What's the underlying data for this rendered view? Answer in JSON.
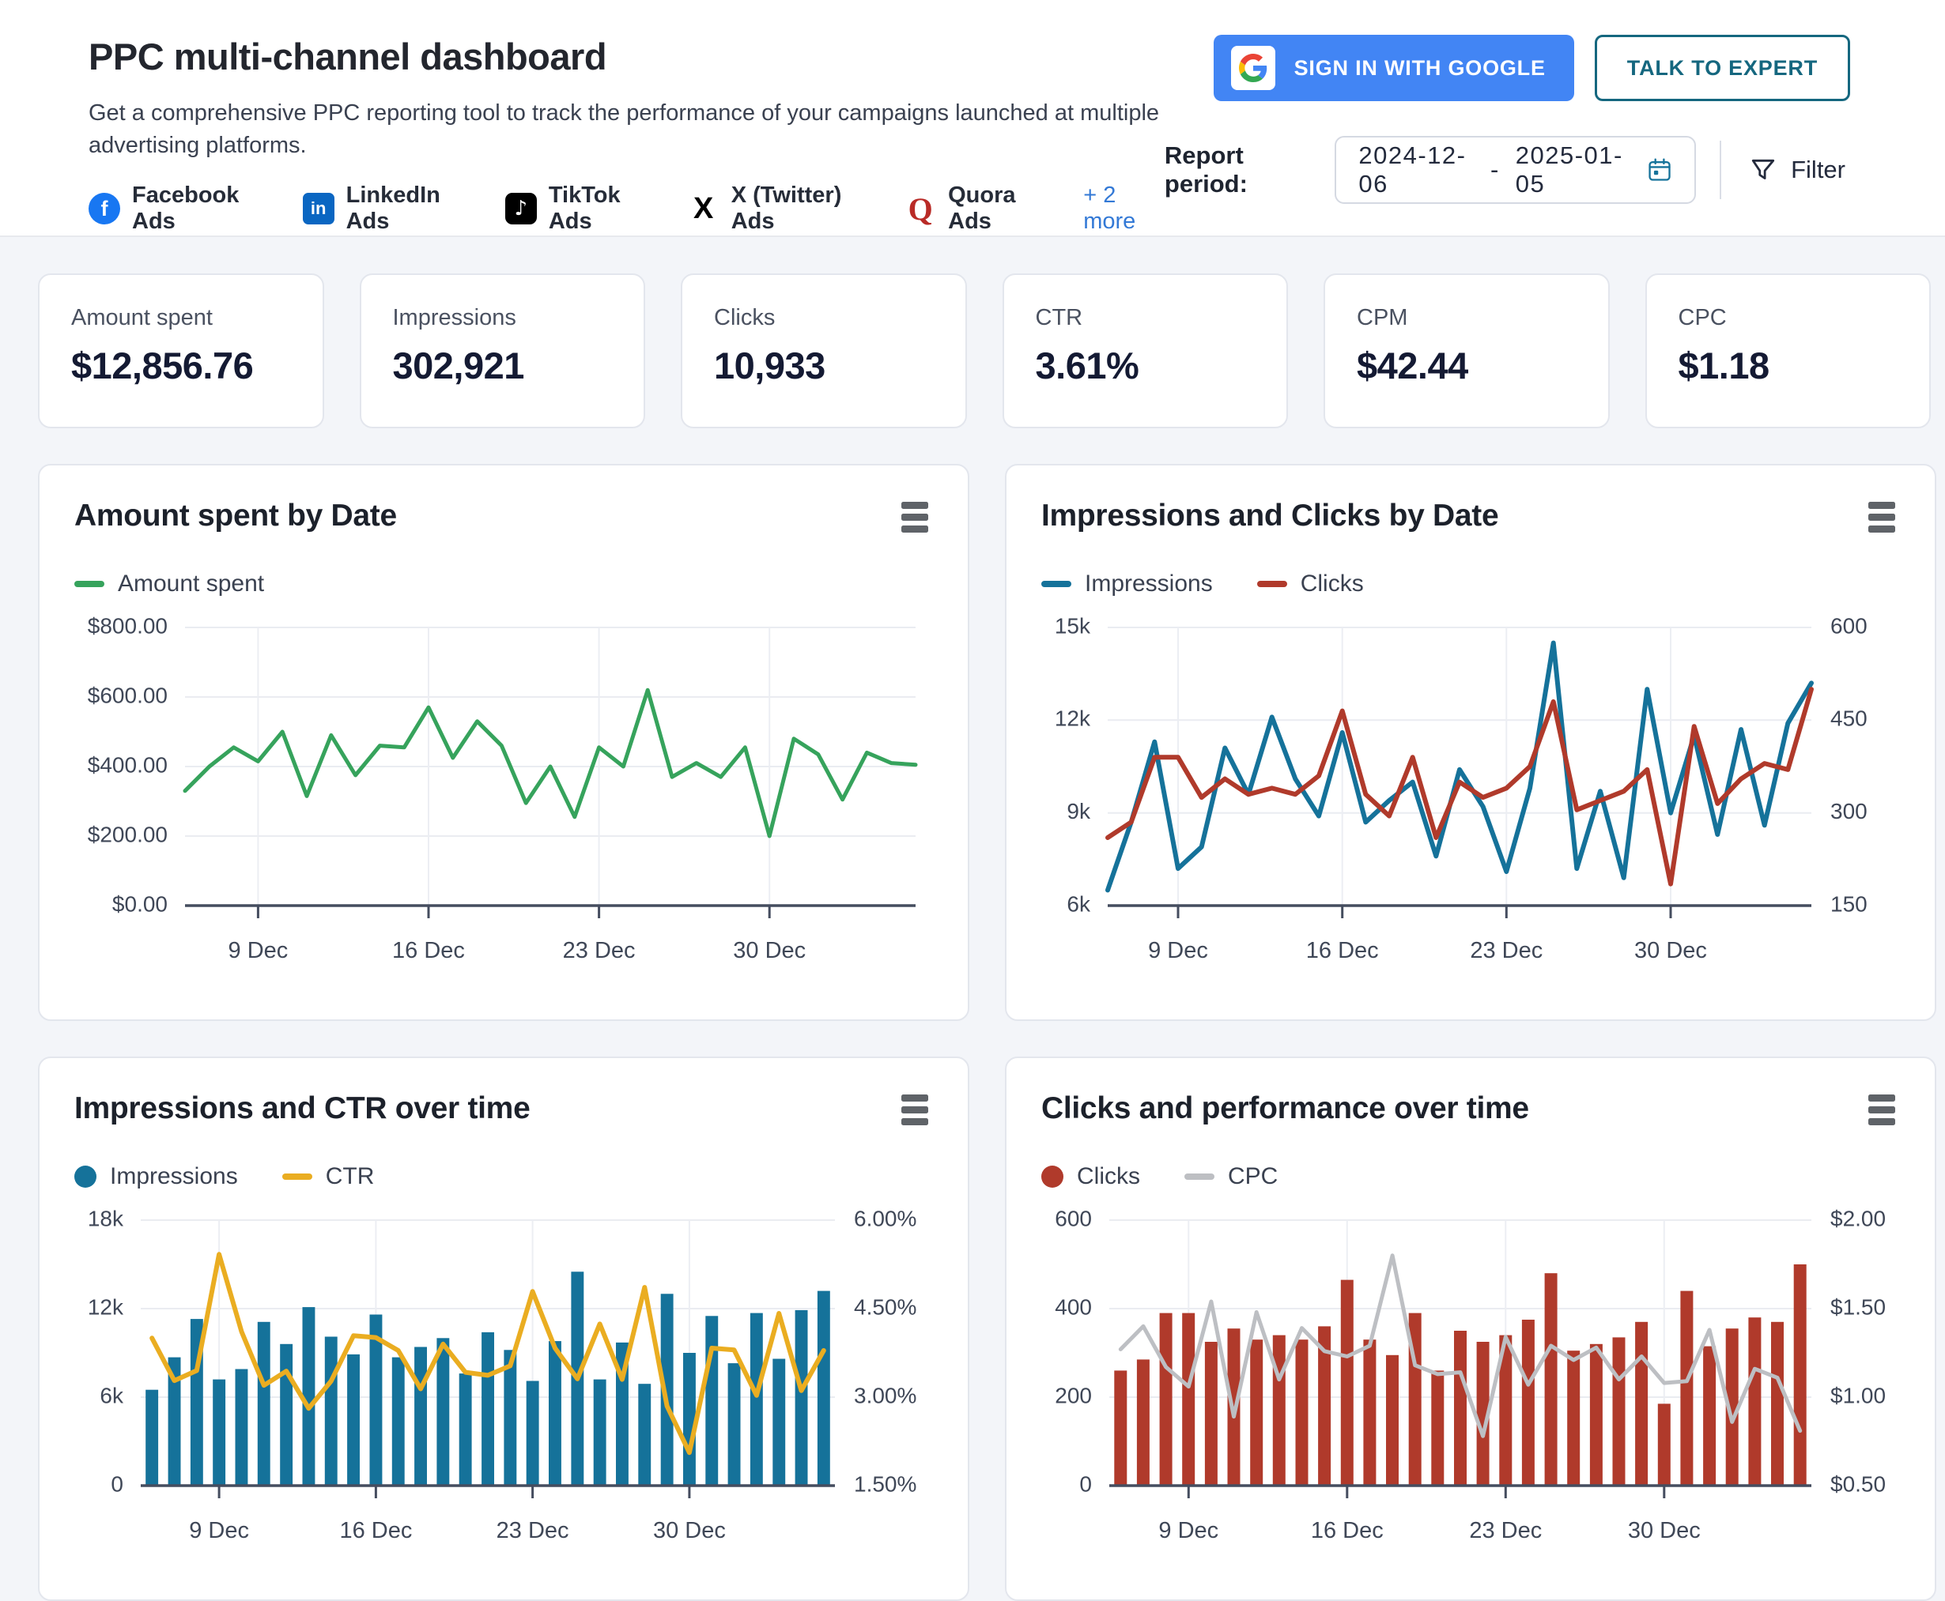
{
  "header": {
    "title": "PPC multi-channel dashboard",
    "subtitle": "Get a comprehensive PPC reporting tool to track the performance of your campaigns launched at multiple advertising platforms.",
    "platforms": [
      {
        "name": "Facebook Ads",
        "icon": "facebook-icon"
      },
      {
        "name": "LinkedIn Ads",
        "icon": "linkedin-icon"
      },
      {
        "name": "TikTok Ads",
        "icon": "tiktok-icon"
      },
      {
        "name": "X (Twitter) Ads",
        "icon": "x-twitter-icon"
      },
      {
        "name": "Quora Ads",
        "icon": "quora-icon"
      }
    ],
    "more_link": "+ 2 more",
    "sign_in_button": "SIGN IN WITH GOOGLE",
    "talk_to_expert_button": "TALK TO EXPERT",
    "report_period_label": "Report period:",
    "report_period_start": "2024-12-06",
    "report_period_separator": "-",
    "report_period_end": "2025-01-05",
    "filter_label": "Filter"
  },
  "kpis": [
    {
      "label": "Amount spent",
      "value": "$12,856.76"
    },
    {
      "label": "Impressions",
      "value": "302,921"
    },
    {
      "label": "Clicks",
      "value": "10,933"
    },
    {
      "label": "CTR",
      "value": "3.61%"
    },
    {
      "label": "CPM",
      "value": "$42.44"
    },
    {
      "label": "CPC",
      "value": "$1.18"
    }
  ],
  "colors": {
    "green": "#36A35C",
    "blue": "#15729A",
    "red": "#B03A2B",
    "yellow": "#EAAD21",
    "gray_line": "#BDBFC3",
    "google_blue": "#4285F4",
    "teal": "#15677F",
    "link_blue": "#3379D6",
    "facebook": "#1877F2",
    "linkedin": "#0A66C2",
    "tiktok": "#000000",
    "quora": "#B92B27",
    "kpi_navy": "#141A33",
    "page_bg": "#F3F5F9"
  },
  "chart_data": [
    {
      "type": "line",
      "title": "Amount spent by Date",
      "x_dates": [
        "2024-12-06",
        "2024-12-07",
        "2024-12-08",
        "2024-12-09",
        "2024-12-10",
        "2024-12-11",
        "2024-12-12",
        "2024-12-13",
        "2024-12-14",
        "2024-12-15",
        "2024-12-16",
        "2024-12-17",
        "2024-12-18",
        "2024-12-19",
        "2024-12-20",
        "2024-12-21",
        "2024-12-22",
        "2024-12-23",
        "2024-12-24",
        "2024-12-25",
        "2024-12-26",
        "2024-12-27",
        "2024-12-28",
        "2024-12-29",
        "2024-12-30",
        "2024-12-31",
        "2025-01-01",
        "2025-01-02",
        "2025-01-03",
        "2025-01-04",
        "2025-01-05"
      ],
      "x_tick_labels": [
        "9 Dec",
        "16 Dec",
        "23 Dec",
        "30 Dec"
      ],
      "x_tick_indices": [
        3,
        10,
        17,
        24
      ],
      "left_axis": {
        "min": 0,
        "max": 800,
        "tick_labels": [
          "$0.00",
          "$200.00",
          "$400.00",
          "$600.00",
          "$800.00"
        ]
      },
      "series": [
        {
          "name": "Amount spent",
          "type": "line",
          "axis": "left",
          "color": "#36A35C",
          "values": [
            330,
            400,
            455,
            415,
            500,
            315,
            490,
            375,
            460,
            455,
            570,
            425,
            530,
            460,
            295,
            400,
            255,
            455,
            400,
            620,
            370,
            410,
            370,
            455,
            200,
            480,
            435,
            305,
            440,
            410,
            405
          ]
        }
      ],
      "legend": [
        {
          "label": "Amount spent",
          "swatch": "line",
          "color": "#36A35C"
        }
      ]
    },
    {
      "type": "line",
      "title": "Impressions and Clicks by Date",
      "x_dates": [
        "2024-12-06",
        "2024-12-07",
        "2024-12-08",
        "2024-12-09",
        "2024-12-10",
        "2024-12-11",
        "2024-12-12",
        "2024-12-13",
        "2024-12-14",
        "2024-12-15",
        "2024-12-16",
        "2024-12-17",
        "2024-12-18",
        "2024-12-19",
        "2024-12-20",
        "2024-12-21",
        "2024-12-22",
        "2024-12-23",
        "2024-12-24",
        "2024-12-25",
        "2024-12-26",
        "2024-12-27",
        "2024-12-28",
        "2024-12-29",
        "2024-12-30",
        "2024-12-31",
        "2025-01-01",
        "2025-01-02",
        "2025-01-03",
        "2025-01-04",
        "2025-01-05"
      ],
      "x_tick_labels": [
        "9 Dec",
        "16 Dec",
        "23 Dec",
        "30 Dec"
      ],
      "x_tick_indices": [
        3,
        10,
        17,
        24
      ],
      "left_axis": {
        "min": 6000,
        "max": 15000,
        "tick_labels": [
          "6k",
          "9k",
          "12k",
          "15k"
        ]
      },
      "right_axis": {
        "min": 150,
        "max": 600,
        "tick_labels": [
          "150",
          "300",
          "450",
          "600"
        ]
      },
      "series": [
        {
          "name": "Impressions",
          "type": "line",
          "axis": "left",
          "color": "#15729A",
          "values": [
            6500,
            8700,
            11300,
            7200,
            7900,
            11100,
            9600,
            12100,
            10100,
            8900,
            11600,
            8700,
            9400,
            10000,
            7600,
            10400,
            9200,
            7100,
            9800,
            14500,
            7200,
            9700,
            6900,
            13000,
            9000,
            11500,
            8300,
            11700,
            8600,
            11900,
            13200
          ]
        },
        {
          "name": "Clicks",
          "type": "line",
          "axis": "right",
          "color": "#B03A2B",
          "values": [
            260,
            285,
            390,
            390,
            325,
            355,
            330,
            340,
            330,
            360,
            465,
            330,
            295,
            390,
            260,
            350,
            325,
            340,
            375,
            480,
            305,
            320,
            335,
            370,
            185,
            440,
            315,
            355,
            380,
            370,
            500
          ]
        }
      ],
      "legend": [
        {
          "label": "Impressions",
          "swatch": "line",
          "color": "#15729A"
        },
        {
          "label": "Clicks",
          "swatch": "line",
          "color": "#B03A2B"
        }
      ]
    },
    {
      "type": "bar",
      "title": "Impressions and CTR over time",
      "x_dates": [
        "2024-12-06",
        "2024-12-07",
        "2024-12-08",
        "2024-12-09",
        "2024-12-10",
        "2024-12-11",
        "2024-12-12",
        "2024-12-13",
        "2024-12-14",
        "2024-12-15",
        "2024-12-16",
        "2024-12-17",
        "2024-12-18",
        "2024-12-19",
        "2024-12-20",
        "2024-12-21",
        "2024-12-22",
        "2024-12-23",
        "2024-12-24",
        "2024-12-25",
        "2024-12-26",
        "2024-12-27",
        "2024-12-28",
        "2024-12-29",
        "2024-12-30",
        "2024-12-31",
        "2025-01-01",
        "2025-01-02",
        "2025-01-03",
        "2025-01-04",
        "2025-01-05"
      ],
      "x_tick_labels": [
        "9 Dec",
        "16 Dec",
        "23 Dec",
        "30 Dec"
      ],
      "x_tick_indices": [
        3,
        10,
        17,
        24
      ],
      "left_axis": {
        "min": 0,
        "max": 18000,
        "tick_labels": [
          "0",
          "6k",
          "12k",
          "18k"
        ]
      },
      "right_axis": {
        "min": 1.5,
        "max": 6.0,
        "tick_labels": [
          "1.50%",
          "3.00%",
          "4.50%",
          "6.00%"
        ]
      },
      "series": [
        {
          "name": "Impressions",
          "type": "bar",
          "axis": "left",
          "color": "#15729A",
          "values": [
            6500,
            8700,
            11300,
            7200,
            7900,
            11100,
            9600,
            12100,
            10100,
            8900,
            11600,
            8700,
            9400,
            10000,
            7600,
            10400,
            9200,
            7100,
            9800,
            14500,
            7200,
            9700,
            6900,
            13000,
            9000,
            11500,
            8300,
            11700,
            8600,
            11900,
            13200
          ]
        },
        {
          "name": "CTR",
          "type": "line",
          "axis": "right",
          "color": "#EAAD21",
          "values": [
            4.0,
            3.28,
            3.45,
            5.42,
            4.11,
            3.2,
            3.44,
            2.81,
            3.27,
            4.04,
            4.01,
            3.79,
            3.14,
            3.9,
            3.42,
            3.37,
            3.53,
            4.79,
            3.83,
            3.31,
            4.24,
            3.3,
            4.86,
            2.85,
            2.06,
            3.83,
            3.8,
            3.03,
            4.42,
            3.11,
            3.79
          ]
        }
      ],
      "legend": [
        {
          "label": "Impressions",
          "swatch": "dot",
          "color": "#15729A"
        },
        {
          "label": "CTR",
          "swatch": "line",
          "color": "#EAAD21"
        }
      ]
    },
    {
      "type": "bar",
      "title": "Clicks and performance over time",
      "x_dates": [
        "2024-12-06",
        "2024-12-07",
        "2024-12-08",
        "2024-12-09",
        "2024-12-10",
        "2024-12-11",
        "2024-12-12",
        "2024-12-13",
        "2024-12-14",
        "2024-12-15",
        "2024-12-16",
        "2024-12-17",
        "2024-12-18",
        "2024-12-19",
        "2024-12-20",
        "2024-12-21",
        "2024-12-22",
        "2024-12-23",
        "2024-12-24",
        "2024-12-25",
        "2024-12-26",
        "2024-12-27",
        "2024-12-28",
        "2024-12-29",
        "2024-12-30",
        "2024-12-31",
        "2025-01-01",
        "2025-01-02",
        "2025-01-03",
        "2025-01-04",
        "2025-01-05"
      ],
      "x_tick_labels": [
        "9 Dec",
        "16 Dec",
        "23 Dec",
        "30 Dec"
      ],
      "x_tick_indices": [
        3,
        10,
        17,
        24
      ],
      "left_axis": {
        "min": 0,
        "max": 600,
        "tick_labels": [
          "0",
          "200",
          "400",
          "600"
        ]
      },
      "right_axis": {
        "min": 0.5,
        "max": 2.0,
        "tick_labels": [
          "$0.50",
          "$1.00",
          "$1.50",
          "$2.00"
        ]
      },
      "series": [
        {
          "name": "Clicks",
          "type": "bar",
          "axis": "left",
          "color": "#B03A2B",
          "values": [
            260,
            285,
            390,
            390,
            325,
            355,
            330,
            340,
            330,
            360,
            465,
            330,
            295,
            390,
            260,
            350,
            325,
            340,
            375,
            480,
            305,
            320,
            335,
            370,
            185,
            440,
            315,
            355,
            380,
            370,
            500
          ]
        },
        {
          "name": "CPC",
          "type": "line",
          "axis": "right",
          "color": "#BDBFC3",
          "values": [
            1.27,
            1.4,
            1.17,
            1.06,
            1.54,
            0.89,
            1.48,
            1.1,
            1.39,
            1.26,
            1.23,
            1.29,
            1.8,
            1.18,
            1.13,
            1.14,
            0.78,
            1.34,
            1.07,
            1.29,
            1.21,
            1.28,
            1.1,
            1.23,
            1.08,
            1.09,
            1.38,
            0.86,
            1.16,
            1.11,
            0.81
          ]
        }
      ],
      "legend": [
        {
          "label": "Clicks",
          "swatch": "dot",
          "color": "#B03A2B"
        },
        {
          "label": "CPC",
          "swatch": "line",
          "color": "#BDBFC3"
        }
      ]
    }
  ]
}
